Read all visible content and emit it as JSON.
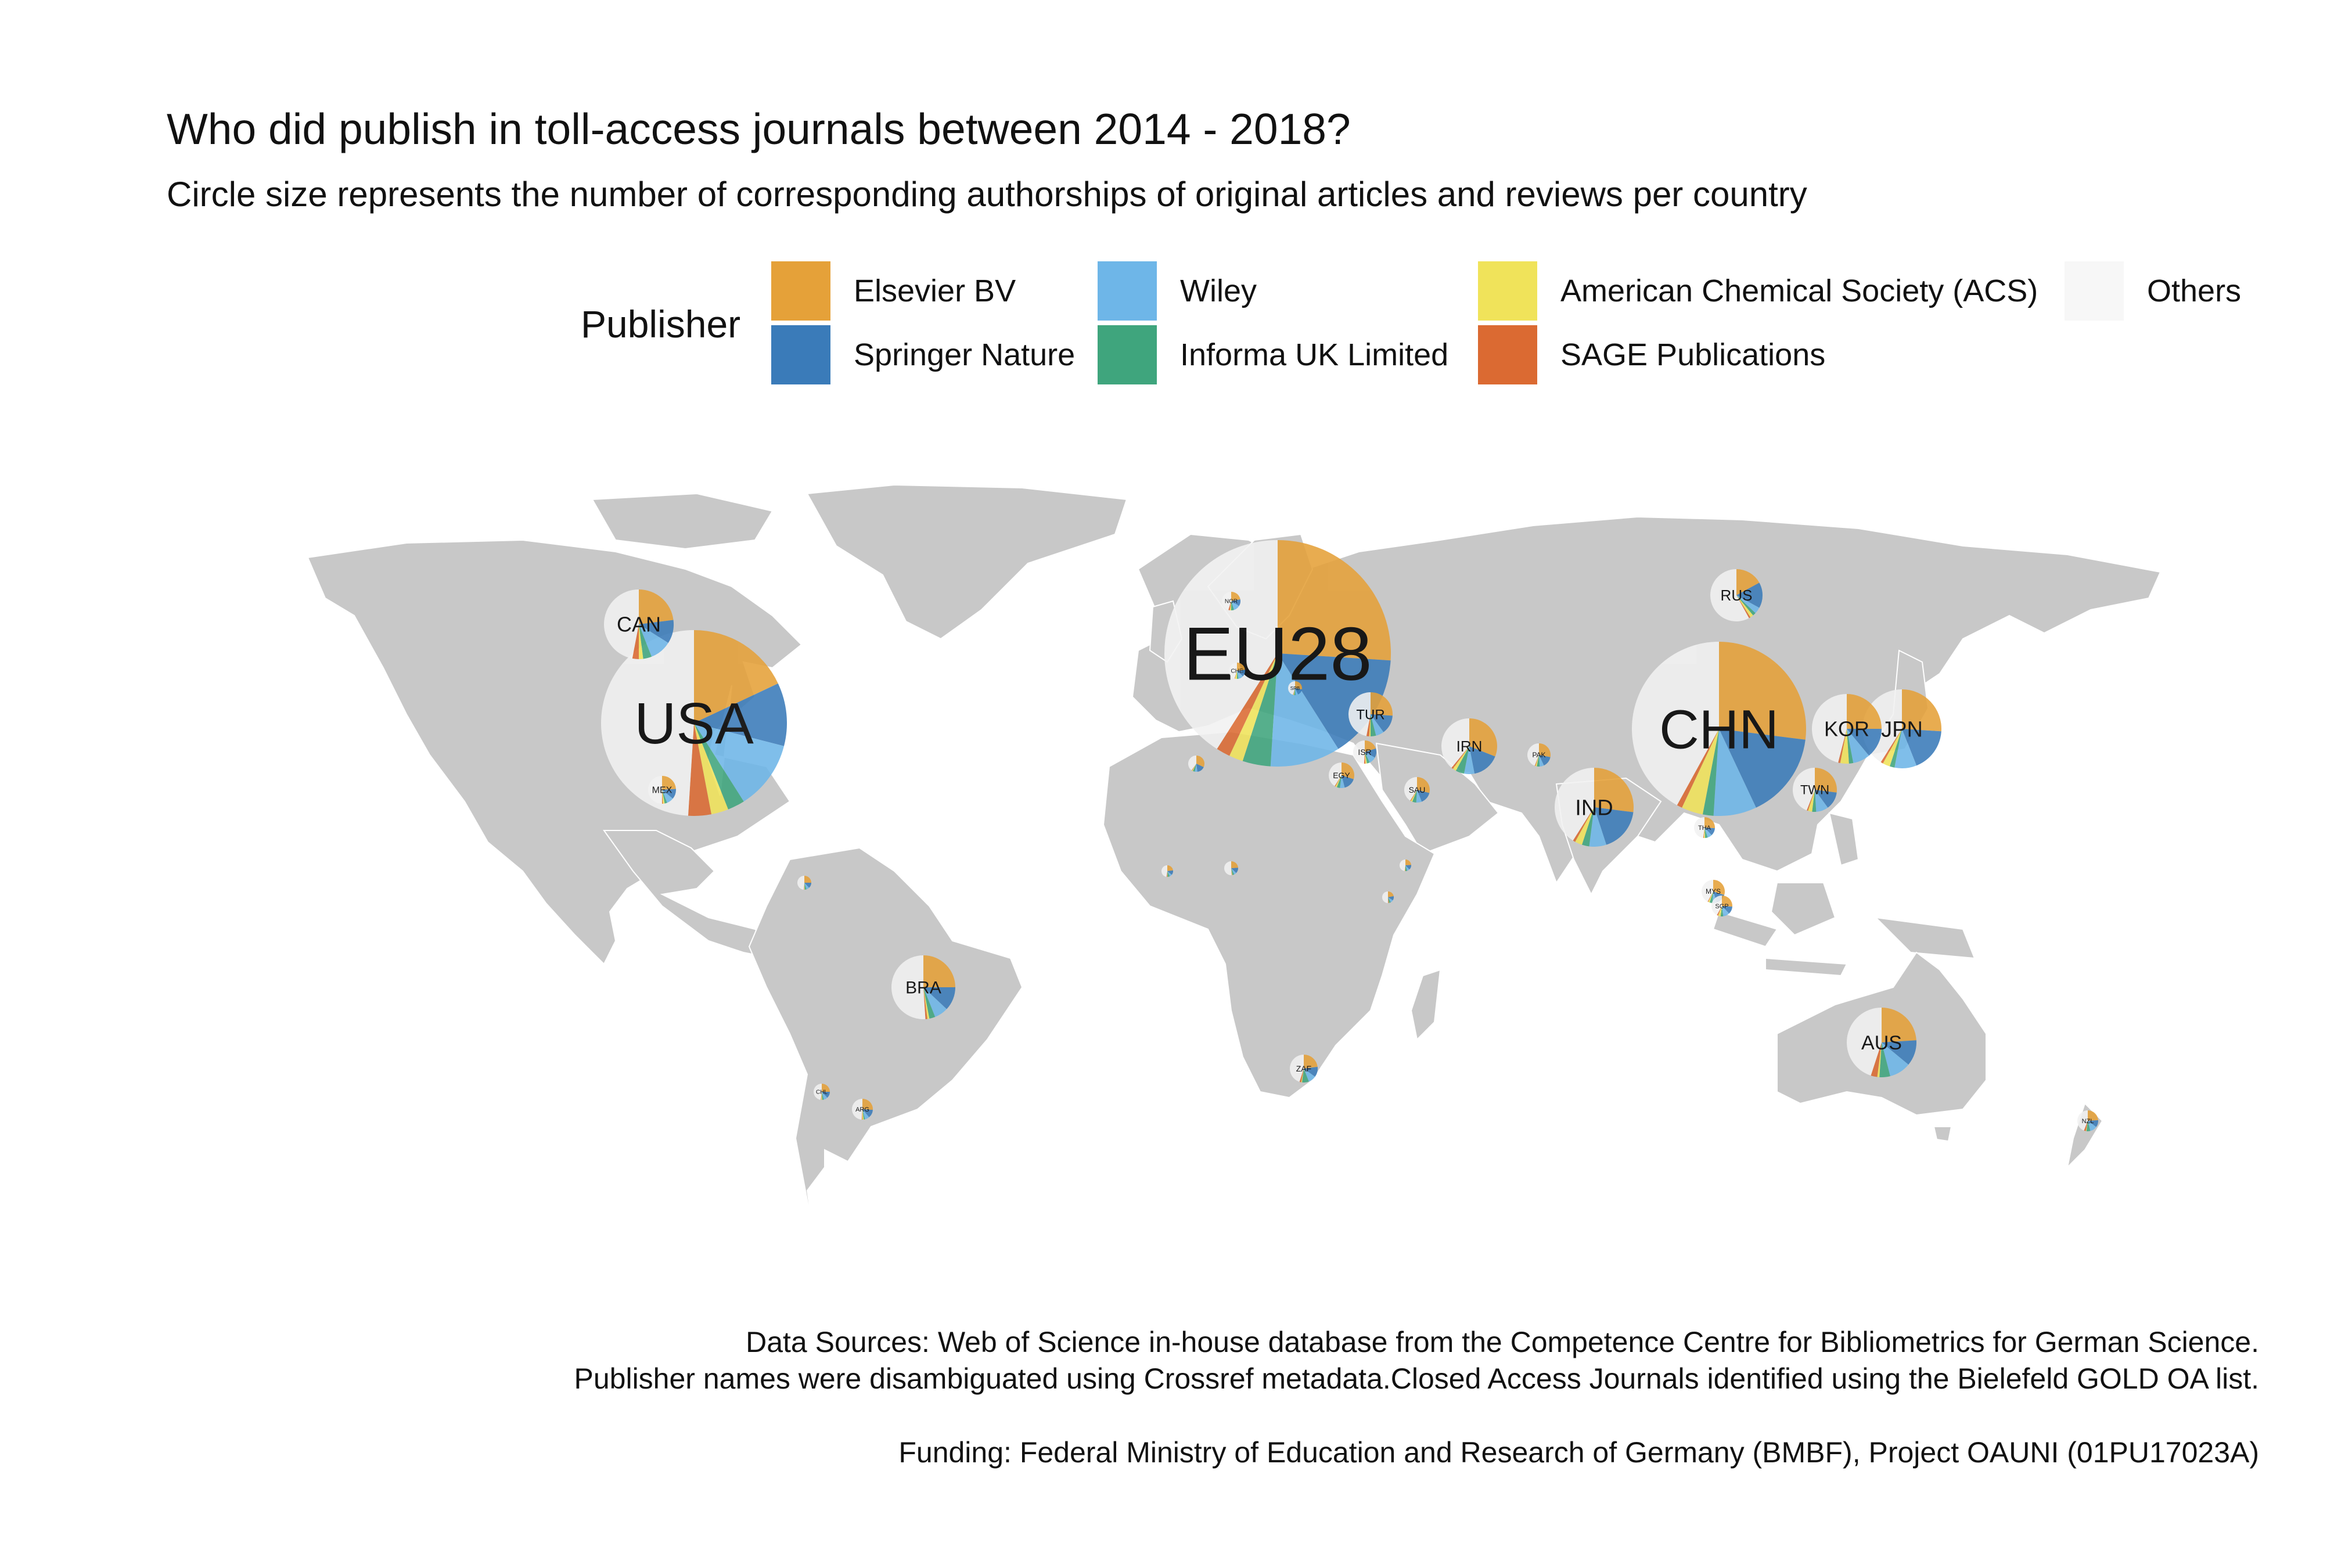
{
  "title": "Who did publish in toll-access journals between 2014 - 2018?",
  "subtitle": "Circle size represents the number of corresponding authorships of original articles and reviews per country",
  "legend": {
    "title": "Publisher",
    "items": [
      {
        "label": "Elsevier BV",
        "color": "#E5A139"
      },
      {
        "label": "Springer Nature",
        "color": "#3A7BB9"
      },
      {
        "label": "Wiley",
        "color": "#6EB6E8"
      },
      {
        "label": "Informa UK Limited",
        "color": "#3FA57D"
      },
      {
        "label": "American Chemical Society (ACS)",
        "color": "#F0E35A"
      },
      {
        "label": "SAGE Publications",
        "color": "#DB6A32"
      },
      {
        "label": "Others",
        "color": "#F7F7F7"
      }
    ]
  },
  "colors": {
    "land": "#C8C8C8",
    "borders": "#FFFFFF",
    "others": "#F2F2F2"
  },
  "countries": [
    {
      "code": "EU28",
      "shares": [
        0.26,
        0.15,
        0.1,
        0.04,
        0.02,
        0.02,
        0.41
      ]
    },
    {
      "code": "USA",
      "shares": [
        0.18,
        0.11,
        0.12,
        0.03,
        0.03,
        0.04,
        0.49
      ]
    },
    {
      "code": "CHN",
      "shares": [
        0.27,
        0.16,
        0.08,
        0.02,
        0.04,
        0.01,
        0.42
      ]
    },
    {
      "code": "CAN",
      "shares": [
        0.23,
        0.11,
        0.1,
        0.04,
        0.02,
        0.03,
        0.47
      ]
    },
    {
      "code": "JPN",
      "shares": [
        0.26,
        0.18,
        0.09,
        0.02,
        0.03,
        0.01,
        0.41
      ]
    },
    {
      "code": "KOR",
      "shares": [
        0.25,
        0.14,
        0.08,
        0.02,
        0.04,
        0.01,
        0.46
      ]
    },
    {
      "code": "IND",
      "shares": [
        0.27,
        0.18,
        0.07,
        0.03,
        0.03,
        0.01,
        0.41
      ]
    },
    {
      "code": "AUS",
      "shares": [
        0.24,
        0.12,
        0.1,
        0.05,
        0.01,
        0.03,
        0.45
      ]
    },
    {
      "code": "BRA",
      "shares": [
        0.25,
        0.12,
        0.07,
        0.03,
        0.01,
        0.01,
        0.51
      ]
    },
    {
      "code": "RUS",
      "shares": [
        0.17,
        0.16,
        0.04,
        0.02,
        0.02,
        0.01,
        0.58
      ]
    },
    {
      "code": "IRN",
      "shares": [
        0.31,
        0.16,
        0.06,
        0.05,
        0.02,
        0.01,
        0.39
      ]
    },
    {
      "code": "TUR",
      "shares": [
        0.26,
        0.14,
        0.06,
        0.04,
        0.01,
        0.02,
        0.47
      ]
    },
    {
      "code": "TWN",
      "shares": [
        0.27,
        0.13,
        0.09,
        0.03,
        0.03,
        0.01,
        0.44
      ]
    },
    {
      "code": "MEX",
      "shares": [
        0.24,
        0.12,
        0.08,
        0.03,
        0.02,
        0.01,
        0.5
      ]
    },
    {
      "code": "ISR",
      "shares": [
        0.2,
        0.13,
        0.1,
        0.04,
        0.02,
        0.02,
        0.49
      ]
    },
    {
      "code": "EGY",
      "shares": [
        0.3,
        0.16,
        0.06,
        0.04,
        0.02,
        0.01,
        0.41
      ]
    },
    {
      "code": "SAU",
      "shares": [
        0.29,
        0.15,
        0.07,
        0.05,
        0.02,
        0.01,
        0.41
      ]
    },
    {
      "code": "PAK",
      "shares": [
        0.28,
        0.15,
        0.06,
        0.04,
        0.02,
        0.01,
        0.44
      ]
    },
    {
      "code": "THA",
      "shares": [
        0.26,
        0.12,
        0.07,
        0.04,
        0.02,
        0.01,
        0.48
      ]
    },
    {
      "code": "MYS",
      "shares": [
        0.3,
        0.15,
        0.06,
        0.04,
        0.02,
        0.01,
        0.42
      ]
    },
    {
      "code": "SGP",
      "shares": [
        0.26,
        0.12,
        0.1,
        0.04,
        0.04,
        0.02,
        0.42
      ]
    },
    {
      "code": "ZAF",
      "shares": [
        0.23,
        0.12,
        0.09,
        0.08,
        0.01,
        0.02,
        0.45
      ]
    },
    {
      "code": "NZL",
      "shares": [
        0.24,
        0.11,
        0.11,
        0.06,
        0.01,
        0.03,
        0.44
      ]
    },
    {
      "code": "ARG",
      "shares": [
        0.26,
        0.13,
        0.07,
        0.02,
        0.02,
        0.01,
        0.49
      ]
    },
    {
      "code": "CHL",
      "shares": [
        0.25,
        0.13,
        0.08,
        0.03,
        0.02,
        0.01,
        0.48
      ]
    },
    {
      "code": "NOR",
      "shares": [
        0.22,
        0.12,
        0.11,
        0.05,
        0.02,
        0.03,
        0.45
      ]
    },
    {
      "code": "CHE",
      "shares": [
        0.23,
        0.14,
        0.1,
        0.03,
        0.04,
        0.01,
        0.45
      ]
    },
    {
      "code": "SRB",
      "shares": [
        0.28,
        0.15,
        0.06,
        0.03,
        0.02,
        0.01,
        0.45
      ]
    },
    {
      "code": "TUN",
      "shares": [
        0.32,
        0.16,
        0.05,
        0.04,
        0.02,
        0.01,
        0.4
      ]
    },
    {
      "code": "COL",
      "shares": [
        0.25,
        0.13,
        0.07,
        0.04,
        0.01,
        0.01,
        0.49
      ]
    },
    {
      "code": "NGA",
      "shares": [
        0.24,
        0.13,
        0.06,
        0.04,
        0.01,
        0.01,
        0.51
      ]
    },
    {
      "code": "KEN",
      "shares": [
        0.22,
        0.12,
        0.08,
        0.05,
        0.01,
        0.02,
        0.5
      ]
    },
    {
      "code": "ETH",
      "shares": [
        0.24,
        0.14,
        0.07,
        0.05,
        0.01,
        0.01,
        0.48
      ]
    },
    {
      "code": "GHA",
      "shares": [
        0.23,
        0.13,
        0.07,
        0.06,
        0.01,
        0.02,
        0.48
      ]
    }
  ],
  "captions": {
    "sources_line1": "Data Sources:  Web of Science in-house database from the Competence Centre for Bibliometrics for German Science.",
    "sources_line2": "Publisher names were disambiguated using Crossref metadata.Closed Access Journals identified using the Bielefeld GOLD OA list.",
    "funding": "Funding: Federal Ministry of Education and Research of Germany (BMBF), Project OAUNI (01PU17023A)"
  }
}
